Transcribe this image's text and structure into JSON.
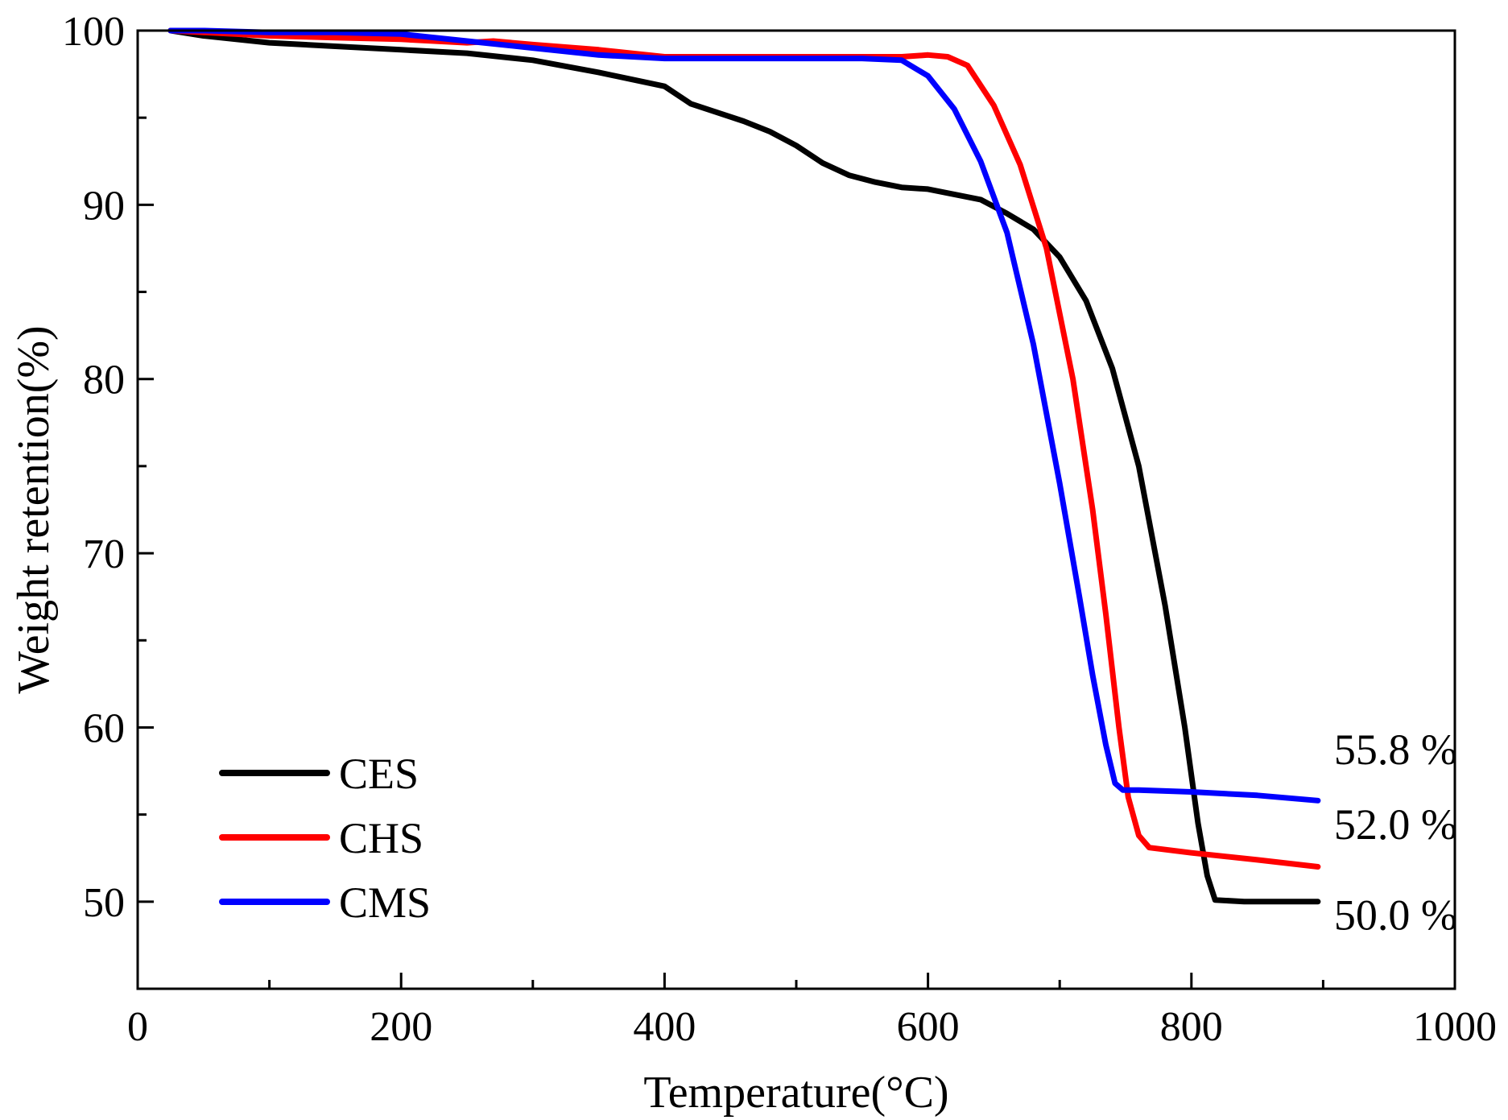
{
  "chart_data": {
    "type": "line",
    "title": "",
    "xlabel": "Temperature(°C)",
    "ylabel": "Weight retention(%)",
    "xlim": [
      0,
      1000
    ],
    "ylim": [
      45,
      100
    ],
    "xticks": [
      0,
      200,
      400,
      600,
      800,
      1000
    ],
    "yticks": [
      50,
      60,
      70,
      80,
      90,
      100
    ],
    "xtick_labels": [
      "0",
      "200",
      "400",
      "600",
      "800",
      "1000"
    ],
    "ytick_labels": [
      "50",
      "60",
      "70",
      "80",
      "90",
      "100"
    ],
    "grid": false,
    "legend_position": "bottom-left",
    "series": [
      {
        "name": "CES",
        "color": "#000000",
        "x": [
          25,
          50,
          100,
          150,
          200,
          250,
          300,
          350,
          375,
          400,
          420,
          440,
          460,
          480,
          500,
          520,
          540,
          560,
          580,
          600,
          620,
          640,
          660,
          680,
          700,
          720,
          740,
          760,
          780,
          795,
          805,
          812,
          818,
          840,
          870,
          896
        ],
        "y": [
          100,
          99.7,
          99.3,
          99.1,
          98.9,
          98.7,
          98.3,
          97.6,
          97.2,
          96.8,
          95.8,
          95.3,
          94.8,
          94.2,
          93.4,
          92.4,
          91.7,
          91.3,
          91.0,
          90.9,
          90.6,
          90.3,
          89.5,
          88.6,
          87.0,
          84.5,
          80.6,
          75.0,
          67.0,
          60.0,
          54.5,
          51.5,
          50.1,
          50.0,
          50.0,
          50.0
        ]
      },
      {
        "name": "CHS",
        "color": "#ff0000",
        "x": [
          25,
          50,
          100,
          150,
          200,
          250,
          270,
          300,
          350,
          400,
          450,
          500,
          550,
          580,
          600,
          615,
          630,
          650,
          670,
          690,
          710,
          725,
          735,
          745,
          752,
          760,
          768,
          800,
          850,
          896
        ],
        "y": [
          100,
          99.9,
          99.7,
          99.6,
          99.5,
          99.3,
          99.4,
          99.2,
          98.9,
          98.5,
          98.5,
          98.5,
          98.5,
          98.5,
          98.6,
          98.5,
          98.0,
          95.7,
          92.3,
          87.5,
          80.0,
          72.5,
          66.5,
          60.0,
          56.0,
          53.8,
          53.1,
          52.8,
          52.4,
          52.0
        ]
      },
      {
        "name": "CMS",
        "color": "#0000ff",
        "x": [
          25,
          50,
          100,
          150,
          200,
          250,
          300,
          350,
          400,
          450,
          500,
          550,
          580,
          600,
          620,
          640,
          660,
          680,
          700,
          715,
          725,
          735,
          742,
          748,
          760,
          800,
          850,
          896
        ],
        "y": [
          100,
          100,
          99.9,
          99.9,
          99.8,
          99.4,
          99.0,
          98.6,
          98.4,
          98.4,
          98.4,
          98.4,
          98.3,
          97.4,
          95.5,
          92.5,
          88.4,
          82.0,
          74.0,
          67.5,
          63.0,
          59.0,
          56.8,
          56.4,
          56.4,
          56.3,
          56.1,
          55.8
        ]
      }
    ],
    "annotations": [
      {
        "text": "55.8 %",
        "x": 955,
        "y": 57.9
      },
      {
        "text": "52.0 %",
        "x": 955,
        "y": 53.6
      },
      {
        "text": "50.0 %",
        "x": 955,
        "y": 48.4
      }
    ]
  }
}
